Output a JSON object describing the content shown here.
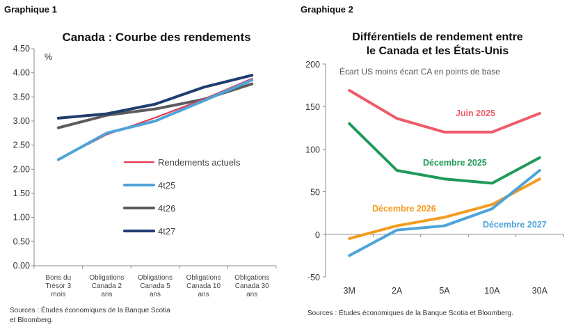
{
  "chart_data": [
    {
      "label": "Graphique 1",
      "type": "line",
      "title": "Canada : Courbe des rendements",
      "ylabel": "%",
      "ylim": [
        0,
        4.5
      ],
      "yticks": [
        "0.00",
        "0.50",
        "1.00",
        "1.50",
        "2.00",
        "2.50",
        "3.00",
        "3.50",
        "4.00",
        "4.50"
      ],
      "categories": [
        [
          "Bons du",
          "Trésor 3",
          "mois"
        ],
        [
          "Obligations",
          "Canada 2",
          "ans"
        ],
        [
          "Obligations",
          "Canada 5",
          "ans"
        ],
        [
          "Obligations",
          "Canada 10",
          "ans"
        ],
        [
          "Obligations",
          "Canada 30",
          "ans"
        ]
      ],
      "series": [
        {
          "name": "Rendements actuels",
          "color": "#e8384f",
          "values": [
            2.2,
            2.72,
            3.07,
            3.45,
            3.88
          ]
        },
        {
          "name": "4t25",
          "color": "#4ea3d8",
          "values": [
            2.2,
            2.75,
            3.0,
            3.42,
            3.85
          ]
        },
        {
          "name": "4t26",
          "color": "#5c5c5c",
          "values": [
            2.86,
            3.12,
            3.25,
            3.45,
            3.77
          ]
        },
        {
          "name": "4t27",
          "color": "#1f3d6e",
          "values": [
            3.06,
            3.15,
            3.35,
            3.7,
            3.95
          ]
        }
      ],
      "legend_position": "center-right",
      "source": [
        "Sources : Études économiques de la Banque Scotia",
        "et Bloomberg."
      ]
    },
    {
      "label": "Graphique 2",
      "type": "line",
      "title": [
        "Différentiels de rendement entre",
        "le Canada et les États-Unis"
      ],
      "subtitle": "Écart US moins écart CA en points de base",
      "ylim": [
        -50,
        200
      ],
      "yticks": [
        "-50",
        "0",
        "50",
        "100",
        "150",
        "200"
      ],
      "categories": [
        "3M",
        "2A",
        "5A",
        "10A",
        "30A"
      ],
      "series": [
        {
          "name": "Juin 2025",
          "color": "#ef5b6a",
          "values": [
            169,
            136,
            120,
            120,
            142
          ]
        },
        {
          "name": "Décembre 2025",
          "color": "#1f9a5a",
          "values": [
            130,
            75,
            65,
            60,
            90
          ]
        },
        {
          "name": "Décembre 2026",
          "color": "#f39c1f",
          "values": [
            -5,
            10,
            20,
            35,
            65
          ]
        },
        {
          "name": "Décembre 2027",
          "color": "#4ea3d8",
          "values": [
            -25,
            5,
            10,
            30,
            75
          ]
        }
      ],
      "source": "Sources : Études économiques de la Banque Scotia et Bloomberg."
    }
  ]
}
